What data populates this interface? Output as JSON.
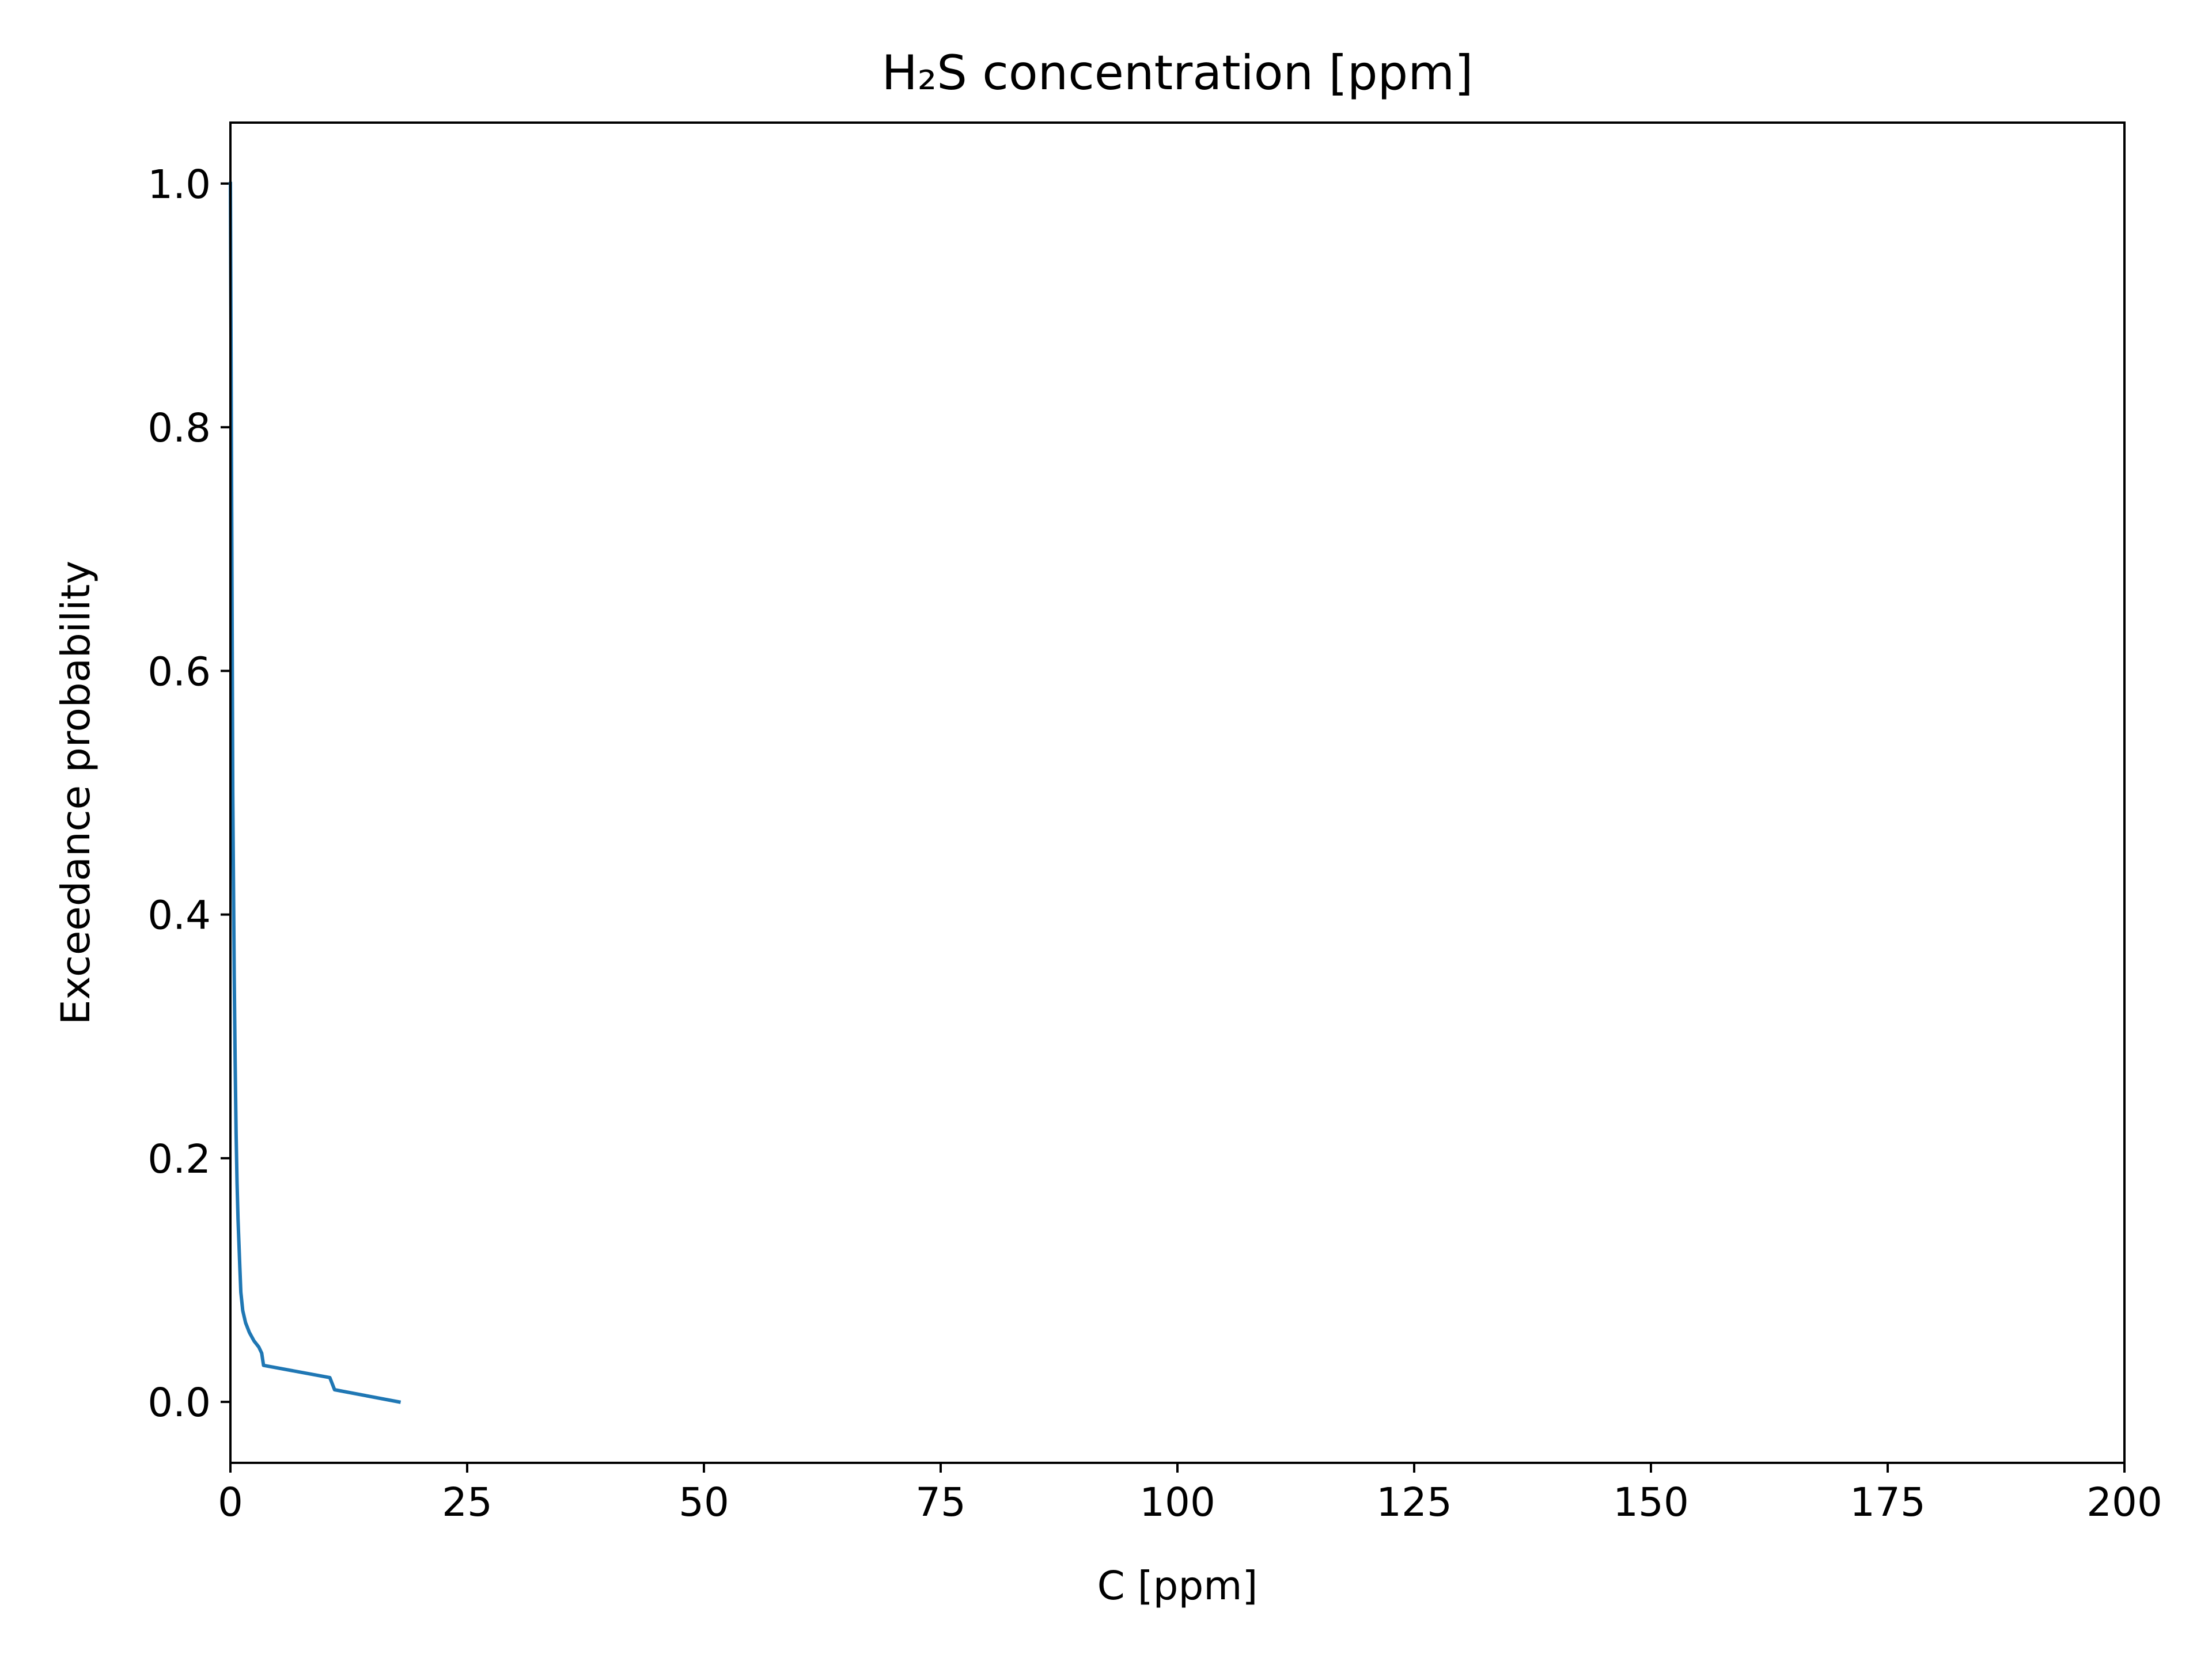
{
  "chart_data": {
    "type": "line",
    "title": "H₂S concentration [ppm]",
    "xlabel": "C [ppm]",
    "ylabel": "Exceedance probability",
    "xlim": [
      0,
      200
    ],
    "ylim": [
      -0.05,
      1.05
    ],
    "xticks": [
      0,
      25,
      50,
      75,
      100,
      125,
      150,
      175,
      200
    ],
    "xtick_labels": [
      "0",
      "25",
      "50",
      "75",
      "100",
      "125",
      "150",
      "175",
      "200"
    ],
    "yticks": [
      0.0,
      0.2,
      0.4,
      0.6,
      0.8,
      1.0
    ],
    "ytick_labels": [
      "0.0",
      "0.2",
      "0.4",
      "0.6",
      "0.8",
      "1.0"
    ],
    "grid": false,
    "line_color": "#1f77b4",
    "series": [
      {
        "x": [
          0.0,
          0.05,
          0.1,
          0.15,
          0.2,
          0.25,
          0.3,
          0.4,
          0.5,
          0.6,
          0.7,
          0.8,
          0.9,
          1.0,
          1.1,
          1.3,
          1.6,
          2.0,
          2.5,
          3.0,
          3.3,
          3.5,
          10.5,
          11.0,
          17.8
        ],
        "y": [
          1.0,
          0.9,
          0.8,
          0.7,
          0.6,
          0.5,
          0.45,
          0.35,
          0.28,
          0.22,
          0.18,
          0.15,
          0.13,
          0.11,
          0.09,
          0.075,
          0.065,
          0.057,
          0.05,
          0.045,
          0.04,
          0.03,
          0.02,
          0.01,
          0.0
        ]
      }
    ]
  }
}
